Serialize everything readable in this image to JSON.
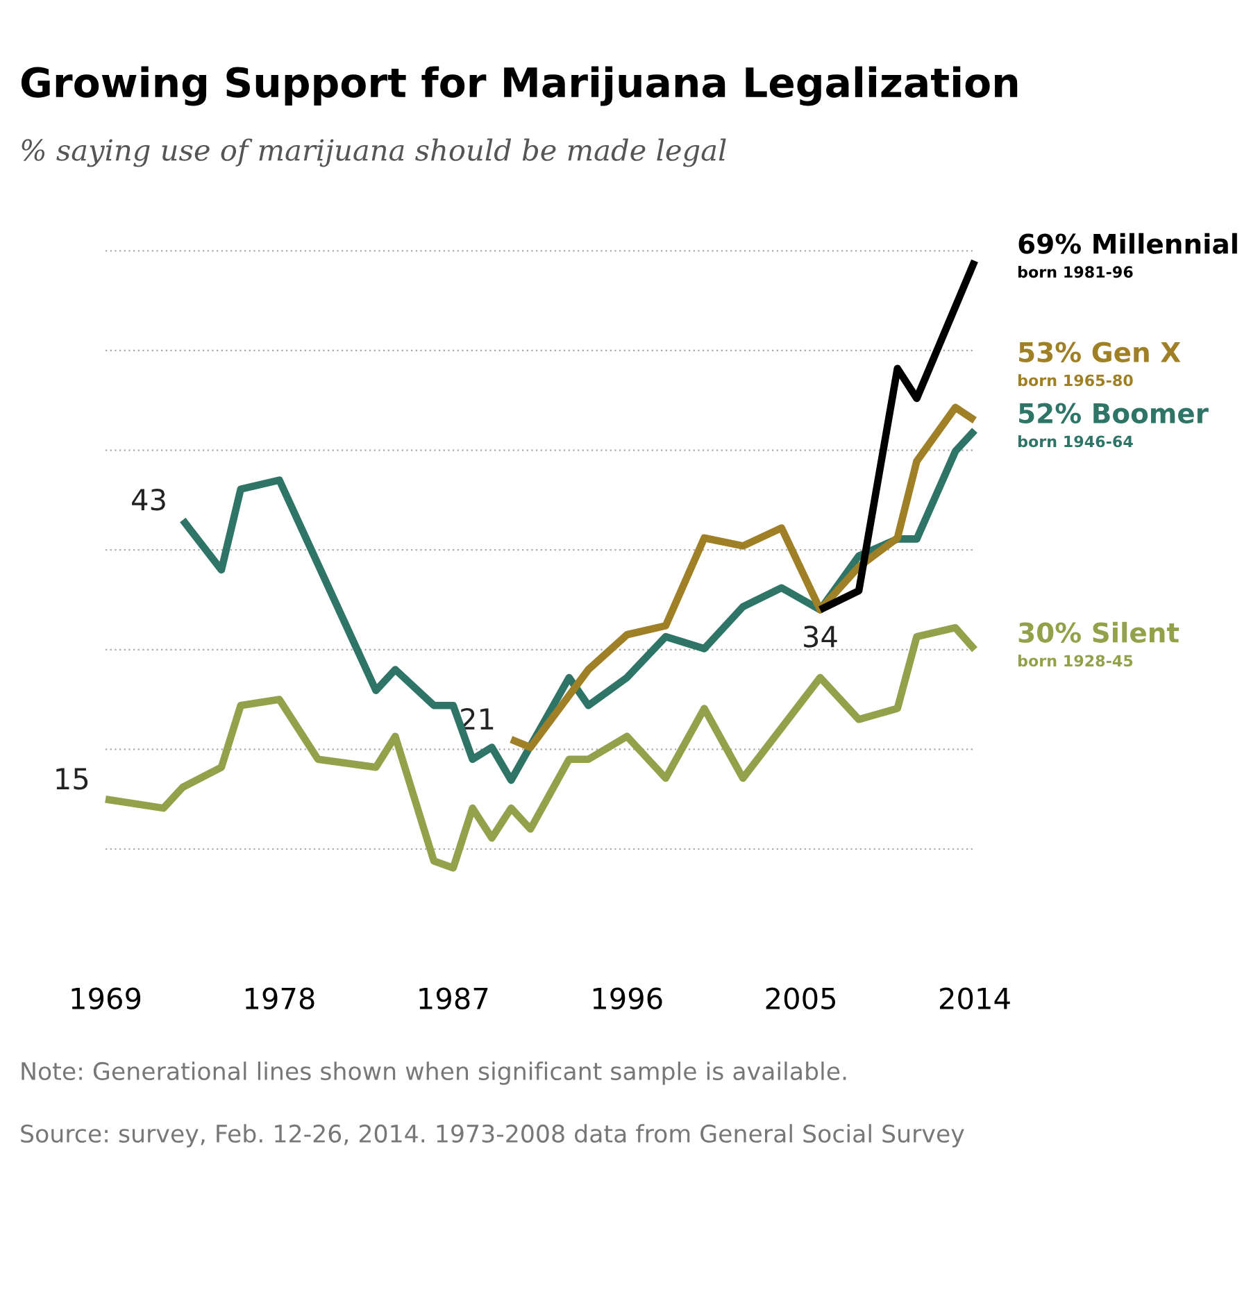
{
  "chart_data": {
    "type": "line",
    "title": "Growing Support for Marijuana Legalization",
    "subtitle": "% saying use of marijuana should be made legal",
    "xlim": [
      1969,
      2014
    ],
    "xticks": [
      1969,
      1978,
      1987,
      1996,
      2005,
      2014
    ],
    "yticks": [
      {
        "value": 10,
        "label": null
      },
      {
        "value": 20,
        "label": null
      },
      {
        "value": 30,
        "label": null
      },
      {
        "value": 40,
        "label": null
      },
      {
        "value": 50,
        "label": null
      },
      {
        "value": 60,
        "label": null
      },
      {
        "value": 70,
        "label": null
      }
    ],
    "grid": "y",
    "tick_labels": "x",
    "marker": "none",
    "line_style": "solid",
    "series": [
      {
        "name": "Silent",
        "color": "#93a24a",
        "x": [
          1969,
          1972,
          1973,
          1975,
          1976,
          1978,
          1980,
          1983,
          1984,
          1986,
          1987,
          1988,
          1989,
          1990,
          1991,
          1993,
          1994,
          1996,
          1998,
          2000,
          2002,
          2006,
          2008,
          2010,
          2011,
          2013,
          2014
        ],
        "values": [
          15,
          14.1,
          16.2,
          18.2,
          24.4,
          25,
          19,
          18.2,
          21.3,
          8.8,
          8.1,
          14.1,
          11.1,
          14.1,
          12,
          19,
          19,
          21.3,
          17.1,
          24.1,
          17.1,
          27.2,
          23,
          24.1,
          31.3,
          32.2,
          30
        ],
        "value_labels": [
          "15",
          null,
          null,
          null,
          null,
          null,
          null,
          null,
          null,
          null,
          null,
          null,
          null,
          null,
          null,
          null,
          null,
          null,
          null,
          null,
          null,
          null,
          null,
          null,
          null,
          null,
          "30%"
        ]
      },
      {
        "name": "Boomer",
        "color": "#2e7567",
        "x": [
          1973,
          1975,
          1976,
          1978,
          1983,
          1984,
          1986,
          1987,
          1988,
          1989,
          1990,
          1993,
          1994,
          1996,
          1998,
          2000,
          2002,
          2004,
          2006,
          2008,
          2010,
          2011,
          2013,
          2014
        ],
        "values": [
          43,
          38,
          46.1,
          47,
          25.9,
          28,
          24.4,
          24.4,
          19,
          20.2,
          16.9,
          27.2,
          24.4,
          27.2,
          31.3,
          30.1,
          34.3,
          36.2,
          34,
          39.4,
          41.1,
          41.1,
          49.9,
          52
        ],
        "value_labels": [
          "43",
          null,
          null,
          null,
          null,
          null,
          null,
          null,
          null,
          null,
          null,
          null,
          null,
          null,
          null,
          null,
          null,
          null,
          "34",
          null,
          null,
          null,
          null,
          "52%"
        ]
      },
      {
        "name": "Gen X",
        "color": "#a08026",
        "x": [
          1990,
          1991,
          1994,
          1996,
          1998,
          2000,
          2002,
          2004,
          2006,
          2008,
          2010,
          2011,
          2013,
          2014
        ],
        "values": [
          21,
          20.2,
          28,
          31.5,
          32.4,
          41.2,
          40.4,
          42.2,
          34,
          38.3,
          41.2,
          48.9,
          54.3,
          53
        ],
        "value_labels": [
          "21",
          null,
          null,
          null,
          null,
          null,
          null,
          null,
          null,
          null,
          null,
          null,
          null,
          "53%"
        ]
      },
      {
        "name": "Millennial",
        "color": "#000000",
        "x": [
          2006,
          2008,
          2010,
          2011,
          2014
        ],
        "values": [
          34,
          35.9,
          58.2,
          55.2,
          69
        ],
        "value_labels": [
          null,
          null,
          null,
          null,
          "69%"
        ]
      }
    ],
    "annotations": [
      "born 1928-45",
      "born 1946-64",
      "born 1965-80",
      "born 1981-96",
      "Note: Generational lines shown when significant sample is available.",
      "Source: survey, Feb. 12-26, 2014. 1973-2008 data from General Social Survey"
    ]
  }
}
